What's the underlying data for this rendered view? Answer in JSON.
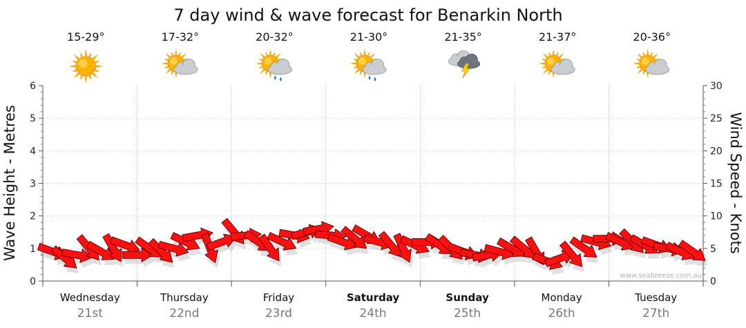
{
  "chart_data": {
    "type": "line",
    "title": "7 day wind & wave forecast for Benarkin North",
    "ylabel_left": "Wave Height - Metres",
    "ylabel_right": "Wind Speed - Knots",
    "ylim_left": [
      0,
      6
    ],
    "ylim_right": [
      0,
      30
    ],
    "yticks_left": [
      "0",
      "1",
      "2",
      "3",
      "4",
      "5",
      "6"
    ],
    "yticks_right": [
      "0",
      "5",
      "10",
      "15",
      "20",
      "25",
      "30"
    ],
    "grid": true,
    "days": [
      {
        "name": "Wednesday",
        "date": "21st",
        "temp": "15-29°",
        "icon": "sunny-icon",
        "bold": false
      },
      {
        "name": "Thursday",
        "date": "22nd",
        "temp": "17-32°",
        "icon": "partly-cloudy-icon",
        "bold": false
      },
      {
        "name": "Friday",
        "date": "23rd",
        "temp": "20-32°",
        "icon": "showers-icon",
        "bold": false
      },
      {
        "name": "Saturday",
        "date": "24th",
        "temp": "21-30°",
        "icon": "showers-icon",
        "bold": true
      },
      {
        "name": "Sunday",
        "date": "25th",
        "temp": "21-35°",
        "icon": "thunderstorm-icon",
        "bold": true
      },
      {
        "name": "Monday",
        "date": "26th",
        "temp": "21-37°",
        "icon": "partly-cloudy-icon",
        "bold": false
      },
      {
        "name": "Tuesday",
        "date": "27th",
        "temp": "20-36°",
        "icon": "partly-cloudy-icon",
        "bold": false
      }
    ],
    "series": [
      {
        "name": "Wind Speed",
        "unit": "knots",
        "values": [
          4.5,
          3.5,
          4,
          5,
          4.5,
          5,
          5.5,
          4,
          5,
          4.5,
          5,
          6,
          7,
          5,
          6,
          7.5,
          7,
          6,
          5,
          6,
          7,
          7.5,
          8,
          7,
          6,
          6.5,
          7,
          6,
          5.5,
          5,
          5.5,
          6,
          5.5,
          5,
          4.5,
          4,
          4,
          4.5,
          5,
          5,
          4.5,
          3,
          3.5,
          4,
          5,
          6,
          6.5,
          6,
          6,
          5.5,
          5.5,
          5,
          4.5,
          4.5
        ],
        "colors": {
          "fill": "#ff1010",
          "stroke": "#5a0000"
        }
      },
      {
        "name": "Wave Height",
        "unit": "metres",
        "values": [
          0.9,
          0.7,
          0.8,
          1.0,
          0.9,
          1.0,
          1.1,
          0.8,
          1.0,
          0.9,
          1.0,
          1.2,
          1.4,
          1.0,
          1.2,
          1.5,
          1.4,
          1.2,
          1.0,
          1.2,
          1.4,
          1.5,
          1.6,
          1.4,
          1.2,
          1.3,
          1.4,
          1.2,
          1.1,
          1.0,
          1.1,
          1.2,
          1.1,
          1.0,
          0.9,
          0.8,
          0.8,
          0.9,
          1.0,
          1.0,
          0.9,
          0.6,
          0.7,
          0.8,
          1.0,
          1.2,
          1.3,
          1.2,
          1.2,
          1.1,
          1.1,
          1.0,
          0.9,
          0.9
        ]
      }
    ],
    "wind_direction_deg": [
      200,
      220,
      190,
      230,
      210,
      240,
      200,
      180,
      215,
      225,
      195,
      205,
      170,
      250,
      160,
      230,
      175,
      215,
      235,
      205,
      190,
      165,
      170,
      185,
      200,
      220,
      210,
      195,
      230,
      245,
      205,
      180,
      215,
      225,
      200,
      190,
      170,
      195,
      210,
      220,
      240,
      200,
      160,
      230,
      215,
      195,
      180,
      205,
      225,
      210,
      200,
      190,
      205,
      215
    ]
  },
  "credit": "www.seabreeze.com.au"
}
